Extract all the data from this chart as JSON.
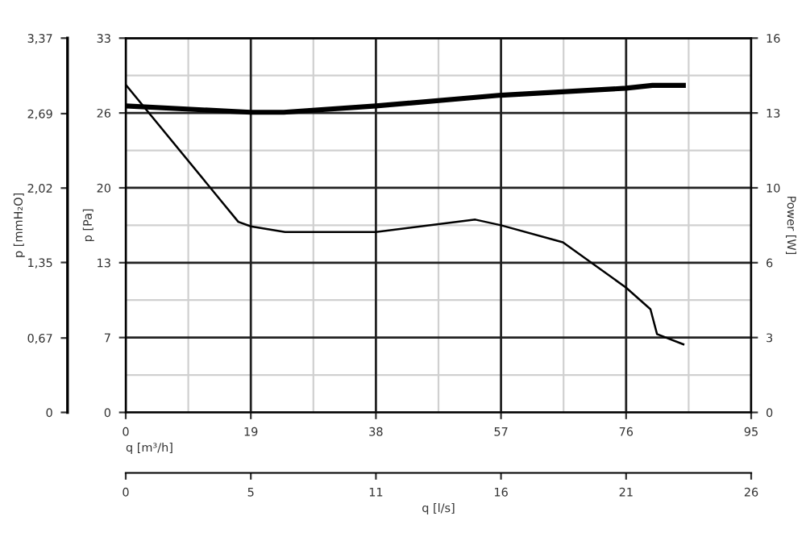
{
  "chart_data": {
    "type": "line",
    "xlabel": "q [m³/h]",
    "ylabel": "p [Pa]",
    "y2label": "Power [W]",
    "y3label": "p [mmH₂O]",
    "x2label": "q [l/s]",
    "xlim": [
      0,
      95
    ],
    "xticks": [
      0,
      19,
      38,
      57,
      76,
      95
    ],
    "ylim": [
      0,
      33
    ],
    "yticks": [
      0,
      {
        "value": 6.6,
        "label": "7"
      },
      {
        "value": 13.2,
        "label": "13"
      },
      {
        "value": 19.8,
        "label": "20"
      },
      {
        "value": 26.4,
        "label": "26"
      },
      33
    ],
    "y2lim": [
      0,
      16
    ],
    "y2ticks": [
      0,
      {
        "value": 3.2,
        "label": "3"
      },
      {
        "value": 6.4,
        "label": "6"
      },
      {
        "value": 9.6,
        "label": "10"
      },
      {
        "value": 12.8,
        "label": "13"
      },
      16
    ],
    "y3lim": [
      0,
      3.37
    ],
    "y3ticks": [
      {
        "value": 0,
        "label": "0"
      },
      {
        "value": 0.67,
        "label": "0,67"
      },
      {
        "value": 1.35,
        "label": "1,35"
      },
      {
        "value": 2.02,
        "label": "2,02"
      },
      {
        "value": 2.69,
        "label": "2,69"
      },
      {
        "value": 3.37,
        "label": "3,37"
      }
    ],
    "x2lim": [
      0,
      26.4
    ],
    "x2ticks": [
      0,
      {
        "value": 5.28,
        "label": "5"
      },
      {
        "value": 10.56,
        "label": "11"
      },
      {
        "value": 15.84,
        "label": "16"
      },
      {
        "value": 21.12,
        "label": "21"
      },
      {
        "value": 26.4,
        "label": "26"
      }
    ],
    "grid": true,
    "marker": "none",
    "line_style": "solid",
    "series": [
      {
        "color": "#000000",
        "x": [
          0,
          17.1,
          19,
          24.2,
          38,
          53.1,
          57,
          66.4,
          76,
          79.7,
          80.7,
          84.7
        ],
        "values": [
          28.9,
          16.8,
          16.4,
          15.9,
          15.9,
          17.0,
          16.5,
          15.0,
          11.0,
          9.1,
          6.9,
          6.0
        ]
      },
      {
        "color": "#000000",
        "axis": "y2",
        "x": [
          0,
          19,
          24,
          38,
          57,
          76,
          80,
          84.7
        ],
        "values": [
          13.1,
          12.83,
          12.83,
          13.1,
          13.56,
          13.86,
          13.98,
          13.98
        ]
      }
    ]
  }
}
